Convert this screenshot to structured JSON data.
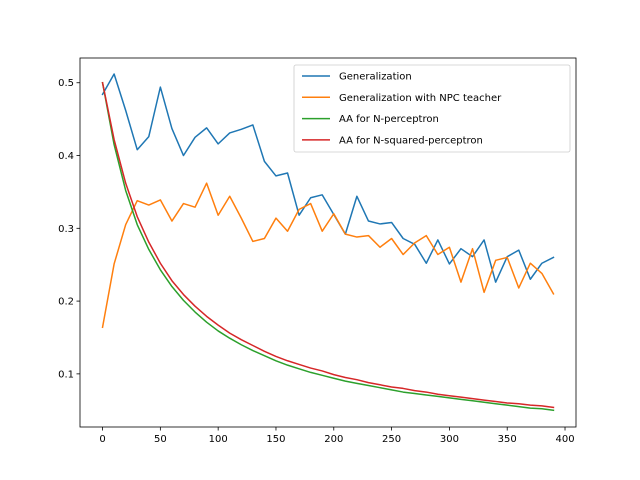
{
  "chart_data": {
    "type": "line",
    "title": "",
    "xlabel": "",
    "ylabel": "",
    "xlim": [
      -19.5,
      409.5
    ],
    "ylim": [
      0.027,
      0.534
    ],
    "xticks": [
      0,
      50,
      100,
      150,
      200,
      250,
      300,
      350,
      400
    ],
    "yticks": [
      0.1,
      0.2,
      0.3,
      0.4,
      0.5
    ],
    "grid": false,
    "legend_position": "top-right",
    "x": [
      0,
      10,
      20,
      30,
      40,
      50,
      60,
      70,
      80,
      90,
      100,
      110,
      120,
      130,
      140,
      150,
      160,
      170,
      180,
      190,
      200,
      210,
      220,
      230,
      240,
      250,
      260,
      270,
      280,
      290,
      300,
      310,
      320,
      330,
      340,
      350,
      360,
      370,
      380,
      390
    ],
    "series": [
      {
        "name": "Generalization",
        "color": "#1f77b4",
        "values": [
          0.484,
          0.512,
          0.462,
          0.408,
          0.426,
          0.494,
          0.437,
          0.4,
          0.425,
          0.438,
          0.416,
          0.431,
          0.436,
          0.442,
          0.392,
          0.372,
          0.376,
          0.318,
          0.342,
          0.346,
          0.319,
          0.292,
          0.344,
          0.31,
          0.306,
          0.308,
          0.286,
          0.278,
          0.252,
          0.284,
          0.251,
          0.272,
          0.261,
          0.284,
          0.226,
          0.261,
          0.27,
          0.23,
          0.252,
          0.26
        ]
      },
      {
        "name": "Generalization with NPC teacher",
        "color": "#ff7f0e",
        "values": [
          0.164,
          0.251,
          0.305,
          0.338,
          0.332,
          0.339,
          0.31,
          0.334,
          0.329,
          0.362,
          0.318,
          0.344,
          0.314,
          0.282,
          0.286,
          0.314,
          0.296,
          0.326,
          0.334,
          0.296,
          0.32,
          0.292,
          0.288,
          0.29,
          0.274,
          0.286,
          0.264,
          0.28,
          0.29,
          0.264,
          0.274,
          0.226,
          0.272,
          0.212,
          0.256,
          0.26,
          0.218,
          0.252,
          0.238,
          0.21
        ]
      },
      {
        "name": "AA for N-perceptron",
        "color": "#2ca02c",
        "values": [
          0.5,
          0.415,
          0.352,
          0.305,
          0.271,
          0.243,
          0.22,
          0.201,
          0.185,
          0.171,
          0.159,
          0.149,
          0.14,
          0.132,
          0.125,
          0.118,
          0.112,
          0.107,
          0.102,
          0.098,
          0.094,
          0.09,
          0.087,
          0.084,
          0.081,
          0.078,
          0.075,
          0.073,
          0.071,
          0.069,
          0.067,
          0.065,
          0.063,
          0.061,
          0.059,
          0.057,
          0.055,
          0.053,
          0.052,
          0.05
        ]
      },
      {
        "name": "AA for N-squared-perceptron",
        "color": "#d62728",
        "values": [
          0.5,
          0.422,
          0.362,
          0.316,
          0.281,
          0.252,
          0.228,
          0.209,
          0.193,
          0.179,
          0.167,
          0.156,
          0.147,
          0.139,
          0.131,
          0.124,
          0.118,
          0.113,
          0.108,
          0.104,
          0.099,
          0.095,
          0.092,
          0.088,
          0.085,
          0.082,
          0.08,
          0.077,
          0.075,
          0.072,
          0.07,
          0.068,
          0.066,
          0.064,
          0.062,
          0.06,
          0.059,
          0.057,
          0.056,
          0.054
        ]
      }
    ]
  }
}
